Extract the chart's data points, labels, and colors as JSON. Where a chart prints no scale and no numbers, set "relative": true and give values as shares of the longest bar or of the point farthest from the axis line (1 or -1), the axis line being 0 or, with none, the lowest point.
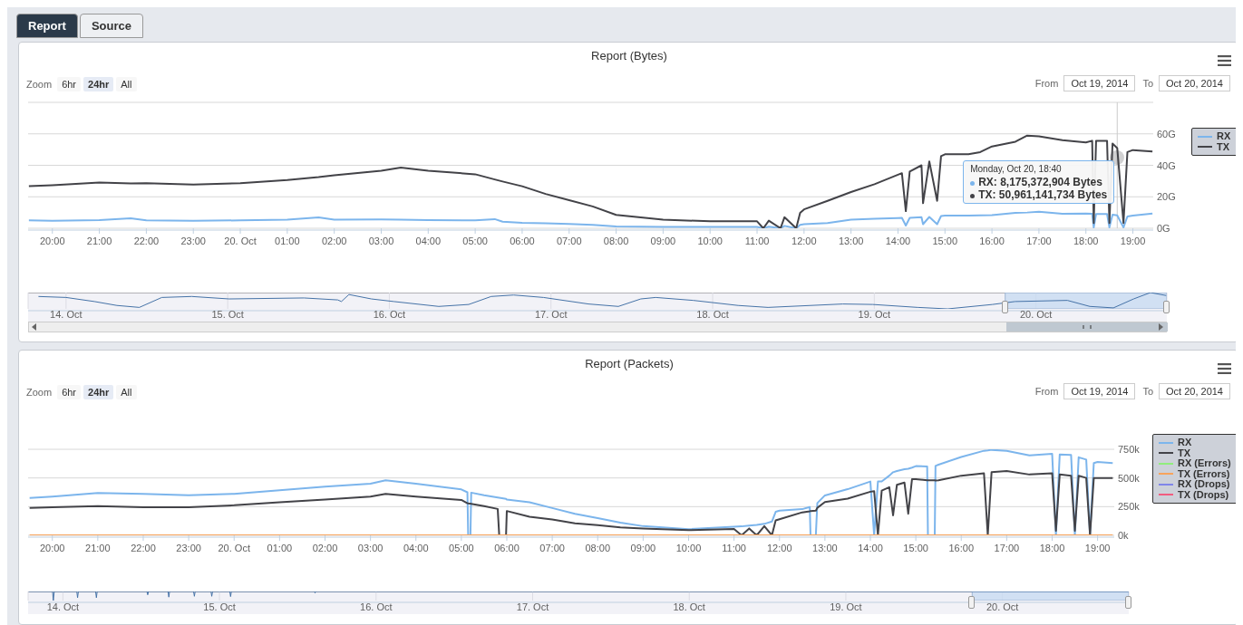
{
  "chart_data": [
    {
      "type": "line",
      "title": "Report (Bytes)",
      "annotations": [
        "Report",
        "Source",
        "Zoom",
        "6hr",
        "24hr",
        "All",
        "From",
        "Oct 19, 2014",
        "To",
        "Oct 20, 2014",
        {
          "text": "Monday, Oct 20, 18:40\nRX: 8,175,372,904 Bytes\nTX: 50,961,141,734 Bytes",
          "x": "2014-10-20T18:40",
          "y": 50.96
        }
      ],
      "x": [
        "2014-10-19T19:30",
        "2014-10-19T20:00",
        "2014-10-19T21:00",
        "2014-10-19T21:40",
        "2014-10-19T22:00",
        "2014-10-19T23:00",
        "2014-10-20T00:00",
        "2014-10-20T01:00",
        "2014-10-20T01:40",
        "2014-10-20T02:00",
        "2014-10-20T03:00",
        "2014-10-20T03:25",
        "2014-10-20T04:00",
        "2014-10-20T05:00",
        "2014-10-20T05:25",
        "2014-10-20T05:35",
        "2014-10-20T06:00",
        "2014-10-20T06:30",
        "2014-10-20T07:00",
        "2014-10-20T07:30",
        "2014-10-20T08:00",
        "2014-10-20T09:00",
        "2014-10-20T10:00",
        "2014-10-20T11:00",
        "2014-10-20T11:08",
        "2014-10-20T11:15",
        "2014-10-20T11:30",
        "2014-10-20T11:35",
        "2014-10-20T11:50",
        "2014-10-20T11:55",
        "2014-10-20T12:00",
        "2014-10-20T12:30",
        "2014-10-20T13:00",
        "2014-10-20T13:30",
        "2014-10-20T14:00",
        "2014-10-20T14:05",
        "2014-10-20T14:10",
        "2014-10-20T14:15",
        "2014-10-20T14:30",
        "2014-10-20T14:32",
        "2014-10-20T14:40",
        "2014-10-20T14:50",
        "2014-10-20T14:55",
        "2014-10-20T15:00",
        "2014-10-20T15:30",
        "2014-10-20T15:45",
        "2014-10-20T16:00",
        "2014-10-20T16:30",
        "2014-10-20T16:45",
        "2014-10-20T17:00",
        "2014-10-20T17:30",
        "2014-10-20T18:00",
        "2014-10-20T18:08",
        "2014-10-20T18:10",
        "2014-10-20T18:13",
        "2014-10-20T18:27",
        "2014-10-20T18:30",
        "2014-10-20T18:34",
        "2014-10-20T18:40",
        "2014-10-20T18:48",
        "2014-10-20T18:53",
        "2014-10-20T19:00",
        "2014-10-20T19:25"
      ],
      "series": [
        {
          "name": "RX",
          "color": "#7cb5ec",
          "values": [
            5,
            4.8,
            5.2,
            6.3,
            5,
            4.8,
            5,
            5.5,
            6.9,
            5.5,
            5.6,
            5.4,
            5.2,
            5,
            5.8,
            4.2,
            3.5,
            3.2,
            2.8,
            2.2,
            1.1,
            0.9,
            0.8,
            0.9,
            0,
            1,
            0,
            1.5,
            0,
            2.2,
            2.6,
            3.3,
            5.5,
            6.1,
            6.5,
            6.6,
            1.7,
            6.6,
            7,
            2.6,
            7.2,
            2.6,
            7.8,
            8,
            8,
            8.2,
            8.3,
            9.8,
            10,
            10.5,
            9.2,
            9.4,
            9.2,
            0.5,
            9,
            9,
            0.5,
            8.6,
            8.18,
            0.5,
            7.5,
            8,
            9.3
          ]
        },
        {
          "name": "TX",
          "color": "#434348",
          "values": [
            26.7,
            27.3,
            29.1,
            28.5,
            28.7,
            27.7,
            28.7,
            30.7,
            32.5,
            33.7,
            36.6,
            38.6,
            36.6,
            34.3,
            31,
            29.7,
            26.7,
            21.8,
            17.8,
            13.9,
            8.5,
            5.5,
            4.4,
            4.4,
            0,
            4.8,
            0,
            7,
            0,
            9.8,
            12,
            17.4,
            23,
            28,
            34,
            35,
            10.9,
            36,
            40,
            15.9,
            42.5,
            17.4,
            45.8,
            47,
            47,
            48.4,
            52,
            55,
            58.9,
            58.4,
            56,
            54.5,
            55.6,
            3.3,
            55.6,
            55.6,
            3.3,
            53.8,
            50.96,
            3.3,
            48.4,
            49.7,
            48.8
          ]
        }
      ],
      "xlim": [
        "2014-10-19T19:29",
        "2014-10-20T19:26"
      ],
      "xticks": [
        {
          "value": "2014-10-19T20:00",
          "label": "20:00"
        },
        {
          "value": "2014-10-19T21:00",
          "label": "21:00"
        },
        {
          "value": "2014-10-19T22:00",
          "label": "22:00"
        },
        {
          "value": "2014-10-19T23:00",
          "label": "23:00"
        },
        {
          "value": "2014-10-20T00:00",
          "label": "20. Oct"
        },
        {
          "value": "2014-10-20T01:00",
          "label": "01:00"
        },
        {
          "value": "2014-10-20T02:00",
          "label": "02:00"
        },
        {
          "value": "2014-10-20T03:00",
          "label": "03:00"
        },
        {
          "value": "2014-10-20T04:00",
          "label": "04:00"
        },
        {
          "value": "2014-10-20T05:00",
          "label": "05:00"
        },
        {
          "value": "2014-10-20T06:00",
          "label": "06:00"
        },
        {
          "value": "2014-10-20T07:00",
          "label": "07:00"
        },
        {
          "value": "2014-10-20T08:00",
          "label": "08:00"
        },
        {
          "value": "2014-10-20T09:00",
          "label": "09:00"
        },
        {
          "value": "2014-10-20T10:00",
          "label": "10:00"
        },
        {
          "value": "2014-10-20T11:00",
          "label": "11:00"
        },
        {
          "value": "2014-10-20T12:00",
          "label": "12:00"
        },
        {
          "value": "2014-10-20T13:00",
          "label": "13:00"
        },
        {
          "value": "2014-10-20T14:00",
          "label": "14:00"
        },
        {
          "value": "2014-10-20T15:00",
          "label": "15:00"
        },
        {
          "value": "2014-10-20T16:00",
          "label": "16:00"
        },
        {
          "value": "2014-10-20T17:00",
          "label": "17:00"
        },
        {
          "value": "2014-10-20T18:00",
          "label": "18:00"
        },
        {
          "value": "2014-10-20T19:00",
          "label": "19:00"
        }
      ],
      "ylim": [
        0,
        80
      ],
      "yticks": [
        {
          "value": 0,
          "label": "0G"
        },
        {
          "value": 20,
          "label": "20G"
        },
        {
          "value": 40,
          "label": "40G"
        },
        {
          "value": 60,
          "label": "60G"
        },
        {
          "value": 80,
          "label": null
        }
      ],
      "ref_lines": [
        {
          "axis": "x",
          "value": "2014-10-20T18:40",
          "color": "#cccccc"
        }
      ],
      "grid": "y",
      "legend": "top right"
    },
    {
      "type": "line",
      "relative": true,
      "x": [
        "2014-10-13T19:54",
        "2014-10-14T00:00",
        "2014-10-14T04:13",
        "2014-10-14T07:33",
        "2014-10-14T10:53",
        "2014-10-14T14:13",
        "2014-10-14T18:40",
        "2014-10-15T00:13",
        "2014-10-15T11:20",
        "2014-10-15T16:20",
        "2014-10-15T16:53",
        "2014-10-15T18:00",
        "2014-10-15T21:20",
        "2014-10-16T00:40",
        "2014-10-16T07:20",
        "2014-10-16T11:47",
        "2014-10-16T15:07",
        "2014-10-16T18:27",
        "2014-10-16T22:53",
        "2014-10-17T05:33",
        "2014-10-17T10:00",
        "2014-10-17T13:20",
        "2014-10-17T15:33",
        "2014-10-17T21:07",
        "2014-10-18T03:47",
        "2014-10-18T08:13",
        "2014-10-18T19:20",
        "2014-10-18T23:47",
        "2014-10-19T06:27",
        "2014-10-19T10:53",
        "2014-10-19T17:33",
        "2014-10-19T20:53",
        "2014-10-20T04:40",
        "2014-10-20T08:00",
        "2014-10-20T11:30",
        "2014-10-20T14:30",
        "2014-10-20T17:00",
        "2014-10-20T19:20"
      ],
      "series": [
        {
          "color": "#4572a7",
          "values": [
            0.76,
            0.7,
            0.45,
            0.21,
            0.09,
            0.7,
            0.76,
            0.61,
            0.67,
            0.55,
            0.45,
            0.88,
            0.61,
            0.45,
            0.15,
            0.27,
            0.76,
            0.85,
            0.7,
            0.3,
            0.15,
            0.61,
            0.7,
            0.52,
            0.21,
            0.09,
            0.3,
            0.27,
            0.09,
            0,
            0.27,
            0.45,
            0.52,
            0.15,
            0.06,
            0.61,
            1,
            0.82
          ]
        }
      ],
      "xlim": [
        "2014-10-13T18:22",
        "2014-10-20T19:26"
      ],
      "xticks": [
        {
          "value": "2014-10-14T00:00",
          "label": "14. Oct"
        },
        {
          "value": "2014-10-15T00:00",
          "label": "15. Oct"
        },
        {
          "value": "2014-10-16T00:00",
          "label": "16. Oct"
        },
        {
          "value": "2014-10-17T00:00",
          "label": "17. Oct"
        },
        {
          "value": "2014-10-18T00:00",
          "label": "18. Oct"
        },
        {
          "value": "2014-10-19T00:00",
          "label": "19. Oct"
        },
        {
          "value": "2014-10-20T00:00",
          "label": "20. Oct"
        }
      ],
      "bands": [
        {
          "axis": "x",
          "from": "2014-10-19T19:26",
          "to": "2014-10-20T19:26",
          "color": "#c6d9f1"
        }
      ],
      "grid": "x"
    },
    {
      "type": "line",
      "title": "Report (Packets)",
      "annotations": [
        "Zoom",
        "6hr",
        "24hr",
        "All",
        "From",
        "Oct 19, 2014",
        "To",
        "Oct 20, 2014"
      ],
      "x": [
        "2014-10-19T19:30",
        "2014-10-19T20:00",
        "2014-10-19T21:00",
        "2014-10-19T22:00",
        "2014-10-19T23:00",
        "2014-10-20T00:00",
        "2014-10-20T01:00",
        "2014-10-20T02:00",
        "2014-10-20T03:00",
        "2014-10-20T03:20",
        "2014-10-20T04:00",
        "2014-10-20T05:00",
        "2014-10-20T05:08",
        "2014-10-20T05:09",
        "2014-10-20T05:12",
        "2014-10-20T05:13",
        "2014-10-20T05:30",
        "2014-10-20T05:48",
        "2014-10-20T05:50",
        "2014-10-20T05:59",
        "2014-10-20T06:00",
        "2014-10-20T06:30",
        "2014-10-20T07:00",
        "2014-10-20T07:30",
        "2014-10-20T08:00",
        "2014-10-20T08:30",
        "2014-10-20T09:00",
        "2014-10-20T10:00",
        "2014-10-20T11:00",
        "2014-10-20T11:10",
        "2014-10-20T11:20",
        "2014-10-20T11:30",
        "2014-10-20T11:40",
        "2014-10-20T11:50",
        "2014-10-20T11:55",
        "2014-10-20T12:00",
        "2014-10-20T12:30",
        "2014-10-20T12:40",
        "2014-10-20T12:41",
        "2014-10-20T12:48",
        "2014-10-20T12:50",
        "2014-10-20T13:00",
        "2014-10-20T13:30",
        "2014-10-20T14:00",
        "2014-10-20T14:05",
        "2014-10-20T14:10",
        "2014-10-20T14:15",
        "2014-10-20T14:25",
        "2014-10-20T14:30",
        "2014-10-20T14:35",
        "2014-10-20T14:45",
        "2014-10-20T14:50",
        "2014-10-20T14:55",
        "2014-10-20T15:00",
        "2014-10-20T15:15",
        "2014-10-20T15:16",
        "2014-10-20T15:25",
        "2014-10-20T15:26",
        "2014-10-20T15:30",
        "2014-10-20T16:00",
        "2014-10-20T16:30",
        "2014-10-20T16:35",
        "2014-10-20T16:40",
        "2014-10-20T17:00",
        "2014-10-20T17:30",
        "2014-10-20T18:00",
        "2014-10-20T18:05",
        "2014-10-20T18:10",
        "2014-10-20T18:25",
        "2014-10-20T18:30",
        "2014-10-20T18:35",
        "2014-10-20T18:45",
        "2014-10-20T18:50",
        "2014-10-20T18:55",
        "2014-10-20T19:00",
        "2014-10-20T19:20"
      ],
      "series": [
        {
          "name": "RX",
          "color": "#7cb5ec",
          "values": [
            325,
            338,
            370,
            362,
            350,
            362,
            392,
            425,
            450,
            480,
            450,
            400,
            375,
            0,
            0,
            372,
            350,
            330,
            328,
            318,
            312,
            288,
            238,
            188,
            150,
            110,
            80,
            54,
            75,
            78,
            85,
            90,
            100,
            120,
            205,
            215,
            228,
            247,
            0,
            0,
            281,
            348,
            402,
            469,
            0,
            470,
            470,
            520,
            550,
            560,
            576,
            580,
            590,
            603,
            600,
            0,
            0,
            605,
            616,
            683,
            737,
            740,
            745,
            737,
            697,
            710,
            0,
            705,
            700,
            0,
            680,
            660,
            0,
            630,
            640,
            630
          ]
        },
        {
          "name": "TX",
          "color": "#434348",
          "values": [
            238,
            245,
            255,
            245,
            245,
            262,
            288,
            312,
            338,
            362,
            338,
            308,
            280,
            278,
            276,
            275,
            255,
            230,
            0,
            0,
            212,
            162,
            138,
            105,
            88,
            70,
            60,
            45,
            55,
            0,
            60,
            0,
            80,
            0,
            130,
            140,
            200,
            210,
            212,
            215,
            240,
            290,
            320,
            380,
            385,
            0,
            390,
            420,
            174,
            440,
            460,
            188,
            490,
            490,
            480,
            480,
            480,
            478,
            480,
            520,
            540,
            0,
            550,
            560,
            530,
            540,
            40,
            530,
            520,
            40,
            520,
            500,
            0,
            500,
            500,
            500
          ]
        },
        {
          "name": "RX (Errors)",
          "color": "#90ed7d",
          "values": [
            null,
            null,
            null,
            null,
            null,
            null,
            null,
            null,
            null,
            null,
            null,
            null,
            null,
            null,
            null,
            null,
            null,
            null,
            null,
            null,
            null,
            null,
            null,
            null,
            null,
            null,
            null,
            null,
            null,
            null,
            null,
            null,
            null,
            null,
            null,
            null,
            null,
            null,
            null,
            null,
            null,
            null,
            null,
            null,
            null,
            null,
            null,
            null,
            null,
            null,
            null,
            null,
            null,
            null,
            null,
            null,
            null,
            null,
            null,
            null,
            null,
            null,
            null,
            null,
            null,
            null,
            null,
            null,
            null,
            null,
            null,
            null,
            null,
            null,
            null,
            null
          ]
        },
        {
          "name": "TX (Errors)",
          "color": "#f7a35c",
          "x": [
            "2014-10-19T19:30",
            "2014-10-20T19:20"
          ],
          "values": [
            0,
            0
          ]
        },
        {
          "name": "RX (Drops)",
          "color": "#8085e9",
          "values": [
            null,
            null,
            null,
            null,
            null,
            null,
            null,
            null,
            null,
            null,
            null,
            null,
            null,
            null,
            null,
            null,
            null,
            null,
            null,
            null,
            null,
            null,
            null,
            null,
            null,
            null,
            null,
            null,
            null,
            null,
            null,
            null,
            null,
            null,
            null,
            null,
            null,
            null,
            null,
            null,
            null,
            null,
            null,
            null,
            null,
            null,
            null,
            null,
            null,
            null,
            null,
            null,
            null,
            null,
            null,
            null,
            null,
            null,
            null,
            null,
            null,
            null,
            null,
            null,
            null,
            null,
            null,
            null,
            null,
            null,
            null,
            null,
            null,
            null,
            null,
            null
          ]
        },
        {
          "name": "TX (Drops)",
          "color": "#f15c80",
          "values": [
            null,
            null,
            null,
            null,
            null,
            null,
            null,
            null,
            null,
            null,
            null,
            null,
            null,
            null,
            null,
            null,
            null,
            null,
            null,
            null,
            null,
            null,
            null,
            null,
            null,
            null,
            null,
            null,
            null,
            null,
            null,
            null,
            null,
            null,
            null,
            null,
            null,
            null,
            null,
            null,
            null,
            null,
            null,
            null,
            null,
            null,
            null,
            null,
            null,
            null,
            null,
            null,
            null,
            null,
            null,
            null,
            null,
            null,
            null,
            null,
            null,
            null,
            null,
            null,
            null,
            null,
            null,
            null,
            null,
            null,
            null,
            null,
            null,
            null,
            null,
            null
          ]
        }
      ],
      "xlim": [
        "2014-10-19T19:28",
        "2014-10-20T19:22"
      ],
      "xticks": [
        {
          "value": "2014-10-19T20:00",
          "label": "20:00"
        },
        {
          "value": "2014-10-19T21:00",
          "label": "21:00"
        },
        {
          "value": "2014-10-19T22:00",
          "label": "22:00"
        },
        {
          "value": "2014-10-19T23:00",
          "label": "23:00"
        },
        {
          "value": "2014-10-20T00:00",
          "label": "20. Oct"
        },
        {
          "value": "2014-10-20T01:00",
          "label": "01:00"
        },
        {
          "value": "2014-10-20T02:00",
          "label": "02:00"
        },
        {
          "value": "2014-10-20T03:00",
          "label": "03:00"
        },
        {
          "value": "2014-10-20T04:00",
          "label": "04:00"
        },
        {
          "value": "2014-10-20T05:00",
          "label": "05:00"
        },
        {
          "value": "2014-10-20T06:00",
          "label": "06:00"
        },
        {
          "value": "2014-10-20T07:00",
          "label": "07:00"
        },
        {
          "value": "2014-10-20T08:00",
          "label": "08:00"
        },
        {
          "value": "2014-10-20T09:00",
          "label": "09:00"
        },
        {
          "value": "2014-10-20T10:00",
          "label": "10:00"
        },
        {
          "value": "2014-10-20T11:00",
          "label": "11:00"
        },
        {
          "value": "2014-10-20T12:00",
          "label": "12:00"
        },
        {
          "value": "2014-10-20T13:00",
          "label": "13:00"
        },
        {
          "value": "2014-10-20T14:00",
          "label": "14:00"
        },
        {
          "value": "2014-10-20T15:00",
          "label": "15:00"
        },
        {
          "value": "2014-10-20T16:00",
          "label": "16:00"
        },
        {
          "value": "2014-10-20T17:00",
          "label": "17:00"
        },
        {
          "value": "2014-10-20T18:00",
          "label": "18:00"
        },
        {
          "value": "2014-10-20T19:00",
          "label": "19:00"
        }
      ],
      "ylim": [
        0,
        750
      ],
      "yticks": [
        {
          "value": 0,
          "label": "0k"
        },
        {
          "value": 250,
          "label": "250k"
        },
        {
          "value": 500,
          "label": "500k"
        },
        {
          "value": 750,
          "label": "750k"
        }
      ],
      "grid": "y",
      "legend": "top right"
    },
    {
      "type": "line",
      "relative": true,
      "x": [
        "2014-10-13T18:45",
        "2014-10-13T22:25",
        "2014-10-13T22:32",
        "2014-10-13T22:40",
        "2014-10-14T02:08",
        "2014-10-14T02:15",
        "2014-10-14T02:22",
        "2014-10-14T05:01",
        "2014-10-14T05:08",
        "2014-10-14T05:15",
        "2014-10-14T12:53",
        "2014-10-14T13:00",
        "2014-10-14T13:07",
        "2014-10-14T16:07",
        "2014-10-14T16:14",
        "2014-10-14T16:21",
        "2014-10-14T20:02",
        "2014-10-14T20:09",
        "2014-10-14T20:16",
        "2014-10-14T22:42",
        "2014-10-14T22:49",
        "2014-10-14T22:56",
        "2014-10-15T01:35",
        "2014-10-15T01:42",
        "2014-10-15T01:49",
        "2014-10-15T14:32",
        "2014-10-15T14:39",
        "2014-10-15T14:46",
        "2014-10-20T19:20"
      ],
      "series": [
        {
          "color": "#4572a7",
          "values": [
            1,
            1,
            0,
            1,
            1,
            0.31,
            1,
            1,
            0.31,
            1,
            1,
            0.63,
            1,
            1,
            0.38,
            1,
            1,
            0.47,
            1,
            1,
            0.47,
            1,
            1,
            0.44,
            1,
            1,
            0.84,
            1,
            1
          ]
        }
      ],
      "xlim": [
        "2014-10-13T18:40",
        "2014-10-20T19:22"
      ],
      "xticks": [
        {
          "value": "2014-10-14T00:00",
          "label": "14. Oct"
        },
        {
          "value": "2014-10-15T00:00",
          "label": "15. Oct"
        },
        {
          "value": "2014-10-16T00:00",
          "label": "16. Oct"
        },
        {
          "value": "2014-10-17T00:00",
          "label": "17. Oct"
        },
        {
          "value": "2014-10-18T00:00",
          "label": "18. Oct"
        },
        {
          "value": "2014-10-19T00:00",
          "label": "19. Oct"
        },
        {
          "value": "2014-10-20T00:00",
          "label": "20. Oct"
        }
      ],
      "bands": [
        {
          "axis": "x",
          "from": "2014-10-19T19:22",
          "to": "2014-10-20T19:22",
          "color": "#c6d9f1"
        }
      ],
      "grid": "x"
    }
  ]
}
